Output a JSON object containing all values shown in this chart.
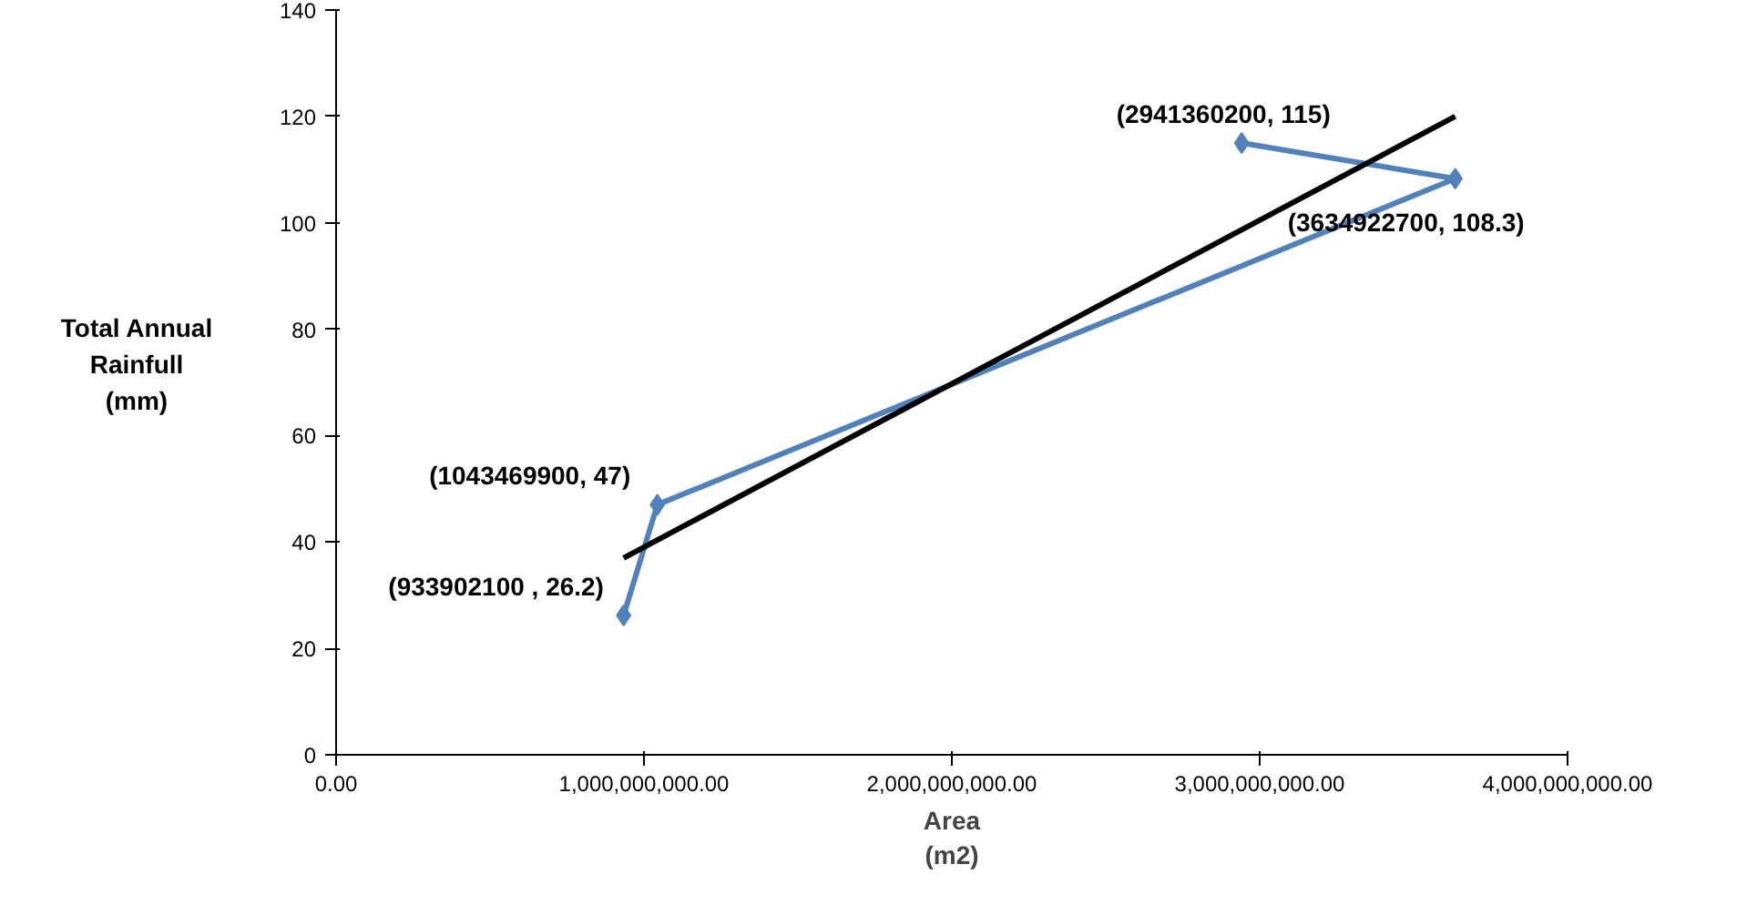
{
  "chart_data": {
    "type": "line",
    "xlabel": "Area\n(m2)",
    "ylabel": "Total Annual\nRainfull\n(mm)",
    "xlim": [
      0,
      4000000000
    ],
    "xticks": [
      {
        "value": 0,
        "label": "0.00"
      },
      {
        "value": 1000000000,
        "label": "1,000,000,000.00"
      },
      {
        "value": 2000000000,
        "label": "2,000,000,000.00"
      },
      {
        "value": 3000000000,
        "label": "3,000,000,000.00"
      },
      {
        "value": 4000000000,
        "label": "4,000,000,000.00"
      }
    ],
    "ylim": [
      0,
      140
    ],
    "yticks": [
      0,
      20,
      40,
      60,
      80,
      100,
      120,
      140
    ],
    "grid": false,
    "series": [
      {
        "color": "#4f81bd",
        "marker": "diamond",
        "x": [
          933902100,
          1043469900,
          3634922700,
          2941360200
        ],
        "values": [
          26.2,
          47,
          108.3,
          115
        ],
        "value_labels": [
          "(933902100 , 26.2)",
          "(1043469900, 47)",
          "(3634922700,  108.3)",
          "(2941360200, 115)"
        ]
      },
      {
        "color": "#000000",
        "marker": "none",
        "x": [
          933902100,
          3634922700
        ],
        "values": [
          37,
          120
        ]
      }
    ]
  }
}
